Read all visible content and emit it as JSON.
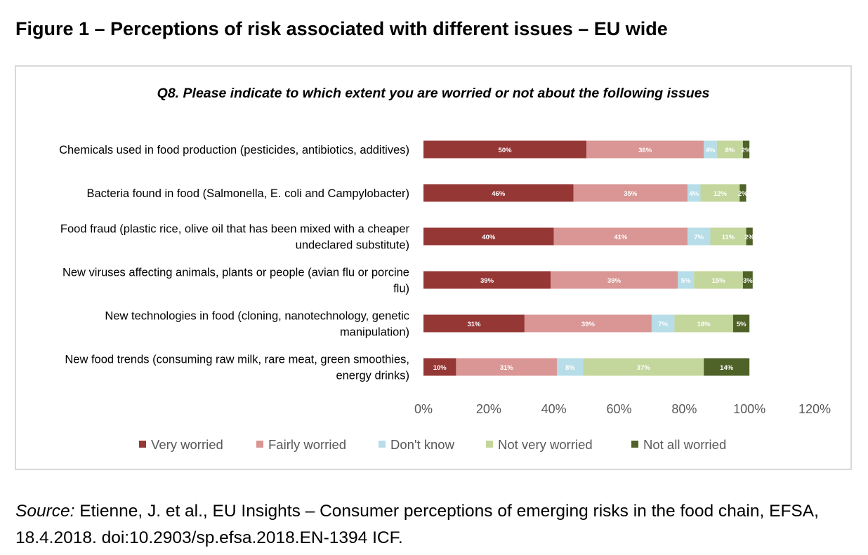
{
  "figure": {
    "title": "Figure 1 – Perceptions of risk associated with different issues – EU wide"
  },
  "chart_data": {
    "type": "bar",
    "orientation": "horizontal",
    "stacked": true,
    "title": "Q8. Please indicate to which extent you are worried or not about the following issues",
    "categories": [
      [
        "Chemicals used in food production (pesticides, antibiotics, additives)"
      ],
      [
        "Bacteria found in food (Salmonella, E. coli and Campylobacter)"
      ],
      [
        "Food fraud (plastic rice, olive oil that has been mixed with a cheaper",
        "undeclared substitute)"
      ],
      [
        "New viruses affecting animals, plants or people (avian flu or porcine",
        "flu)"
      ],
      [
        "New technologies in food (cloning, nanotechnology, genetic",
        "manipulation)"
      ],
      [
        "New food trends (consuming raw milk, rare meat, green smoothies,",
        "energy drinks)"
      ]
    ],
    "series": [
      {
        "name": "Very worried",
        "color": "#953735",
        "label_color": "#ffffff",
        "values": [
          50,
          46,
          40,
          39,
          31,
          10
        ]
      },
      {
        "name": "Fairly worried",
        "color": "#d99694",
        "label_color": "#ffffff",
        "values": [
          36,
          35,
          41,
          39,
          39,
          31
        ]
      },
      {
        "name": "Don't know",
        "color": "#b7dde8",
        "label_color": "#ffffff",
        "values": [
          4,
          4,
          7,
          5,
          7,
          8
        ]
      },
      {
        "name": "Not very worried",
        "color": "#c3d69b",
        "label_color": "#ffffff",
        "values": [
          8,
          12,
          11,
          15,
          18,
          37
        ]
      },
      {
        "name": "Not all worried",
        "color": "#4f6228",
        "label_color": "#ffffff",
        "values": [
          2,
          2,
          2,
          3,
          5,
          14
        ]
      }
    ],
    "xlim": [
      0,
      120
    ],
    "xticks": [
      "0%",
      "20%",
      "40%",
      "60%",
      "80%",
      "100%",
      "120%"
    ],
    "value_suffix": "%",
    "legend_position": "bottom",
    "grid": false
  },
  "source": {
    "label": "Source:",
    "text": "Etienne, J. et al., EU Insights – Consumer perceptions of emerging risks in the food chain, EFSA, 18.4.2018. doi:10.2903/sp.efsa.2018.EN-1394 ICF."
  }
}
